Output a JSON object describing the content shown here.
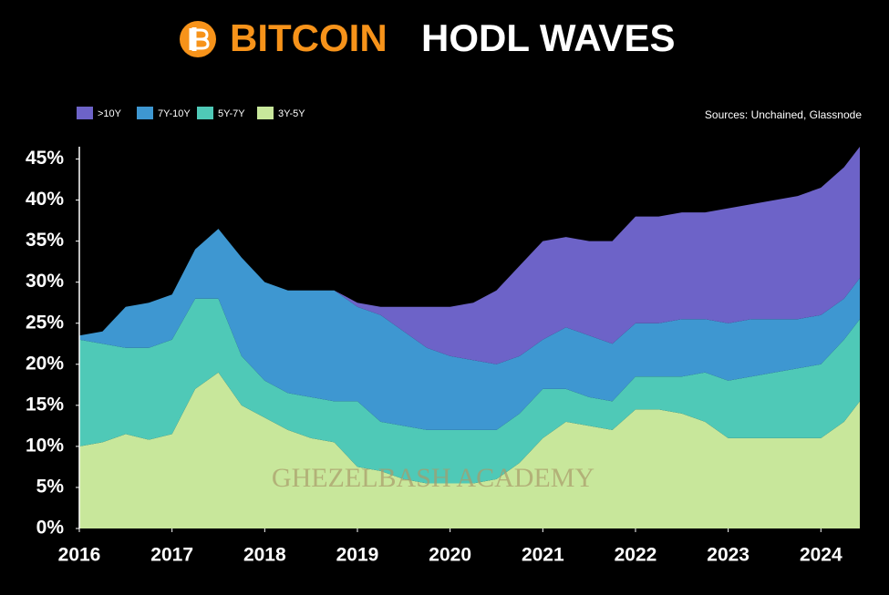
{
  "chart_data": {
    "type": "stacked_area",
    "title_accent": "BITCOIN",
    "title": "HODL WAVES",
    "source": "Sources: Unchained, Glassnode",
    "watermark": "GHEZELBASH   ACADEMY",
    "x": [
      2016.0,
      2016.25,
      2016.5,
      2016.75,
      2017.0,
      2017.25,
      2017.5,
      2017.75,
      2018.0,
      2018.25,
      2018.5,
      2018.75,
      2019.0,
      2019.25,
      2019.5,
      2019.75,
      2020.0,
      2020.25,
      2020.5,
      2020.75,
      2021.0,
      2021.25,
      2021.5,
      2021.75,
      2022.0,
      2022.25,
      2022.5,
      2022.75,
      2023.0,
      2023.25,
      2023.5,
      2023.75,
      2024.0,
      2024.25,
      2024.42
    ],
    "series": [
      {
        "name": ">10Y",
        "color": "#6d63c8",
        "values": [
          0,
          0,
          0,
          0,
          0,
          0,
          0,
          0,
          0,
          0,
          0,
          0,
          0.5,
          1,
          3,
          5,
          6,
          7,
          9,
          11,
          12,
          11,
          11.5,
          12.5,
          13,
          13,
          13,
          13,
          14,
          14,
          14.5,
          15,
          15.5,
          16,
          16
        ]
      },
      {
        "name": "7Y-10Y",
        "color": "#3e97d1",
        "values": [
          0.5,
          1.5,
          5,
          5.5,
          5.5,
          6,
          8.5,
          12,
          12,
          12.5,
          13,
          13.5,
          11.5,
          13,
          11.5,
          10,
          9,
          8.5,
          8,
          7,
          6,
          7.5,
          7.5,
          7,
          6.5,
          6.5,
          7,
          6.5,
          7,
          7,
          6.5,
          6,
          6,
          5,
          5
        ]
      },
      {
        "name": "5Y-7Y",
        "color": "#4fc9b7",
        "values": [
          13,
          12,
          10.5,
          11.2,
          11.5,
          11,
          9,
          6,
          4.5,
          4.5,
          5,
          5,
          8,
          6,
          6.5,
          6.5,
          6.5,
          6.5,
          6,
          6,
          6,
          4,
          3.5,
          3.5,
          4,
          4,
          4.5,
          6,
          7,
          7.5,
          8,
          8.5,
          9,
          10,
          10
        ]
      },
      {
        "name": "3Y-5Y",
        "color": "#c8e79b",
        "values": [
          10,
          10.5,
          11.5,
          10.8,
          11.5,
          17,
          19,
          15,
          13.5,
          12,
          11,
          10.5,
          7.5,
          7,
          6,
          5.5,
          5.5,
          5.5,
          6,
          8,
          11,
          13,
          12.5,
          12,
          14.5,
          14.5,
          14,
          13,
          11,
          11,
          11,
          11,
          11,
          13,
          15.5
        ]
      }
    ],
    "xlim": [
      2016,
      2024.42
    ],
    "xticks": [
      2016,
      2017,
      2018,
      2019,
      2020,
      2021,
      2022,
      2023,
      2024
    ],
    "ylim": [
      0,
      46.5
    ],
    "yticks": [
      {
        "value": 0,
        "label": "0%"
      },
      {
        "value": 5,
        "label": "5%"
      },
      {
        "value": 10,
        "label": "10%"
      },
      {
        "value": 15,
        "label": "15%"
      },
      {
        "value": 20,
        "label": "20%"
      },
      {
        "value": 25,
        "label": "25%"
      },
      {
        "value": 30,
        "label": "30%"
      },
      {
        "value": 35,
        "label": "35%"
      },
      {
        "value": 40,
        "label": "40%"
      },
      {
        "value": 45,
        "label": "45%"
      }
    ]
  }
}
